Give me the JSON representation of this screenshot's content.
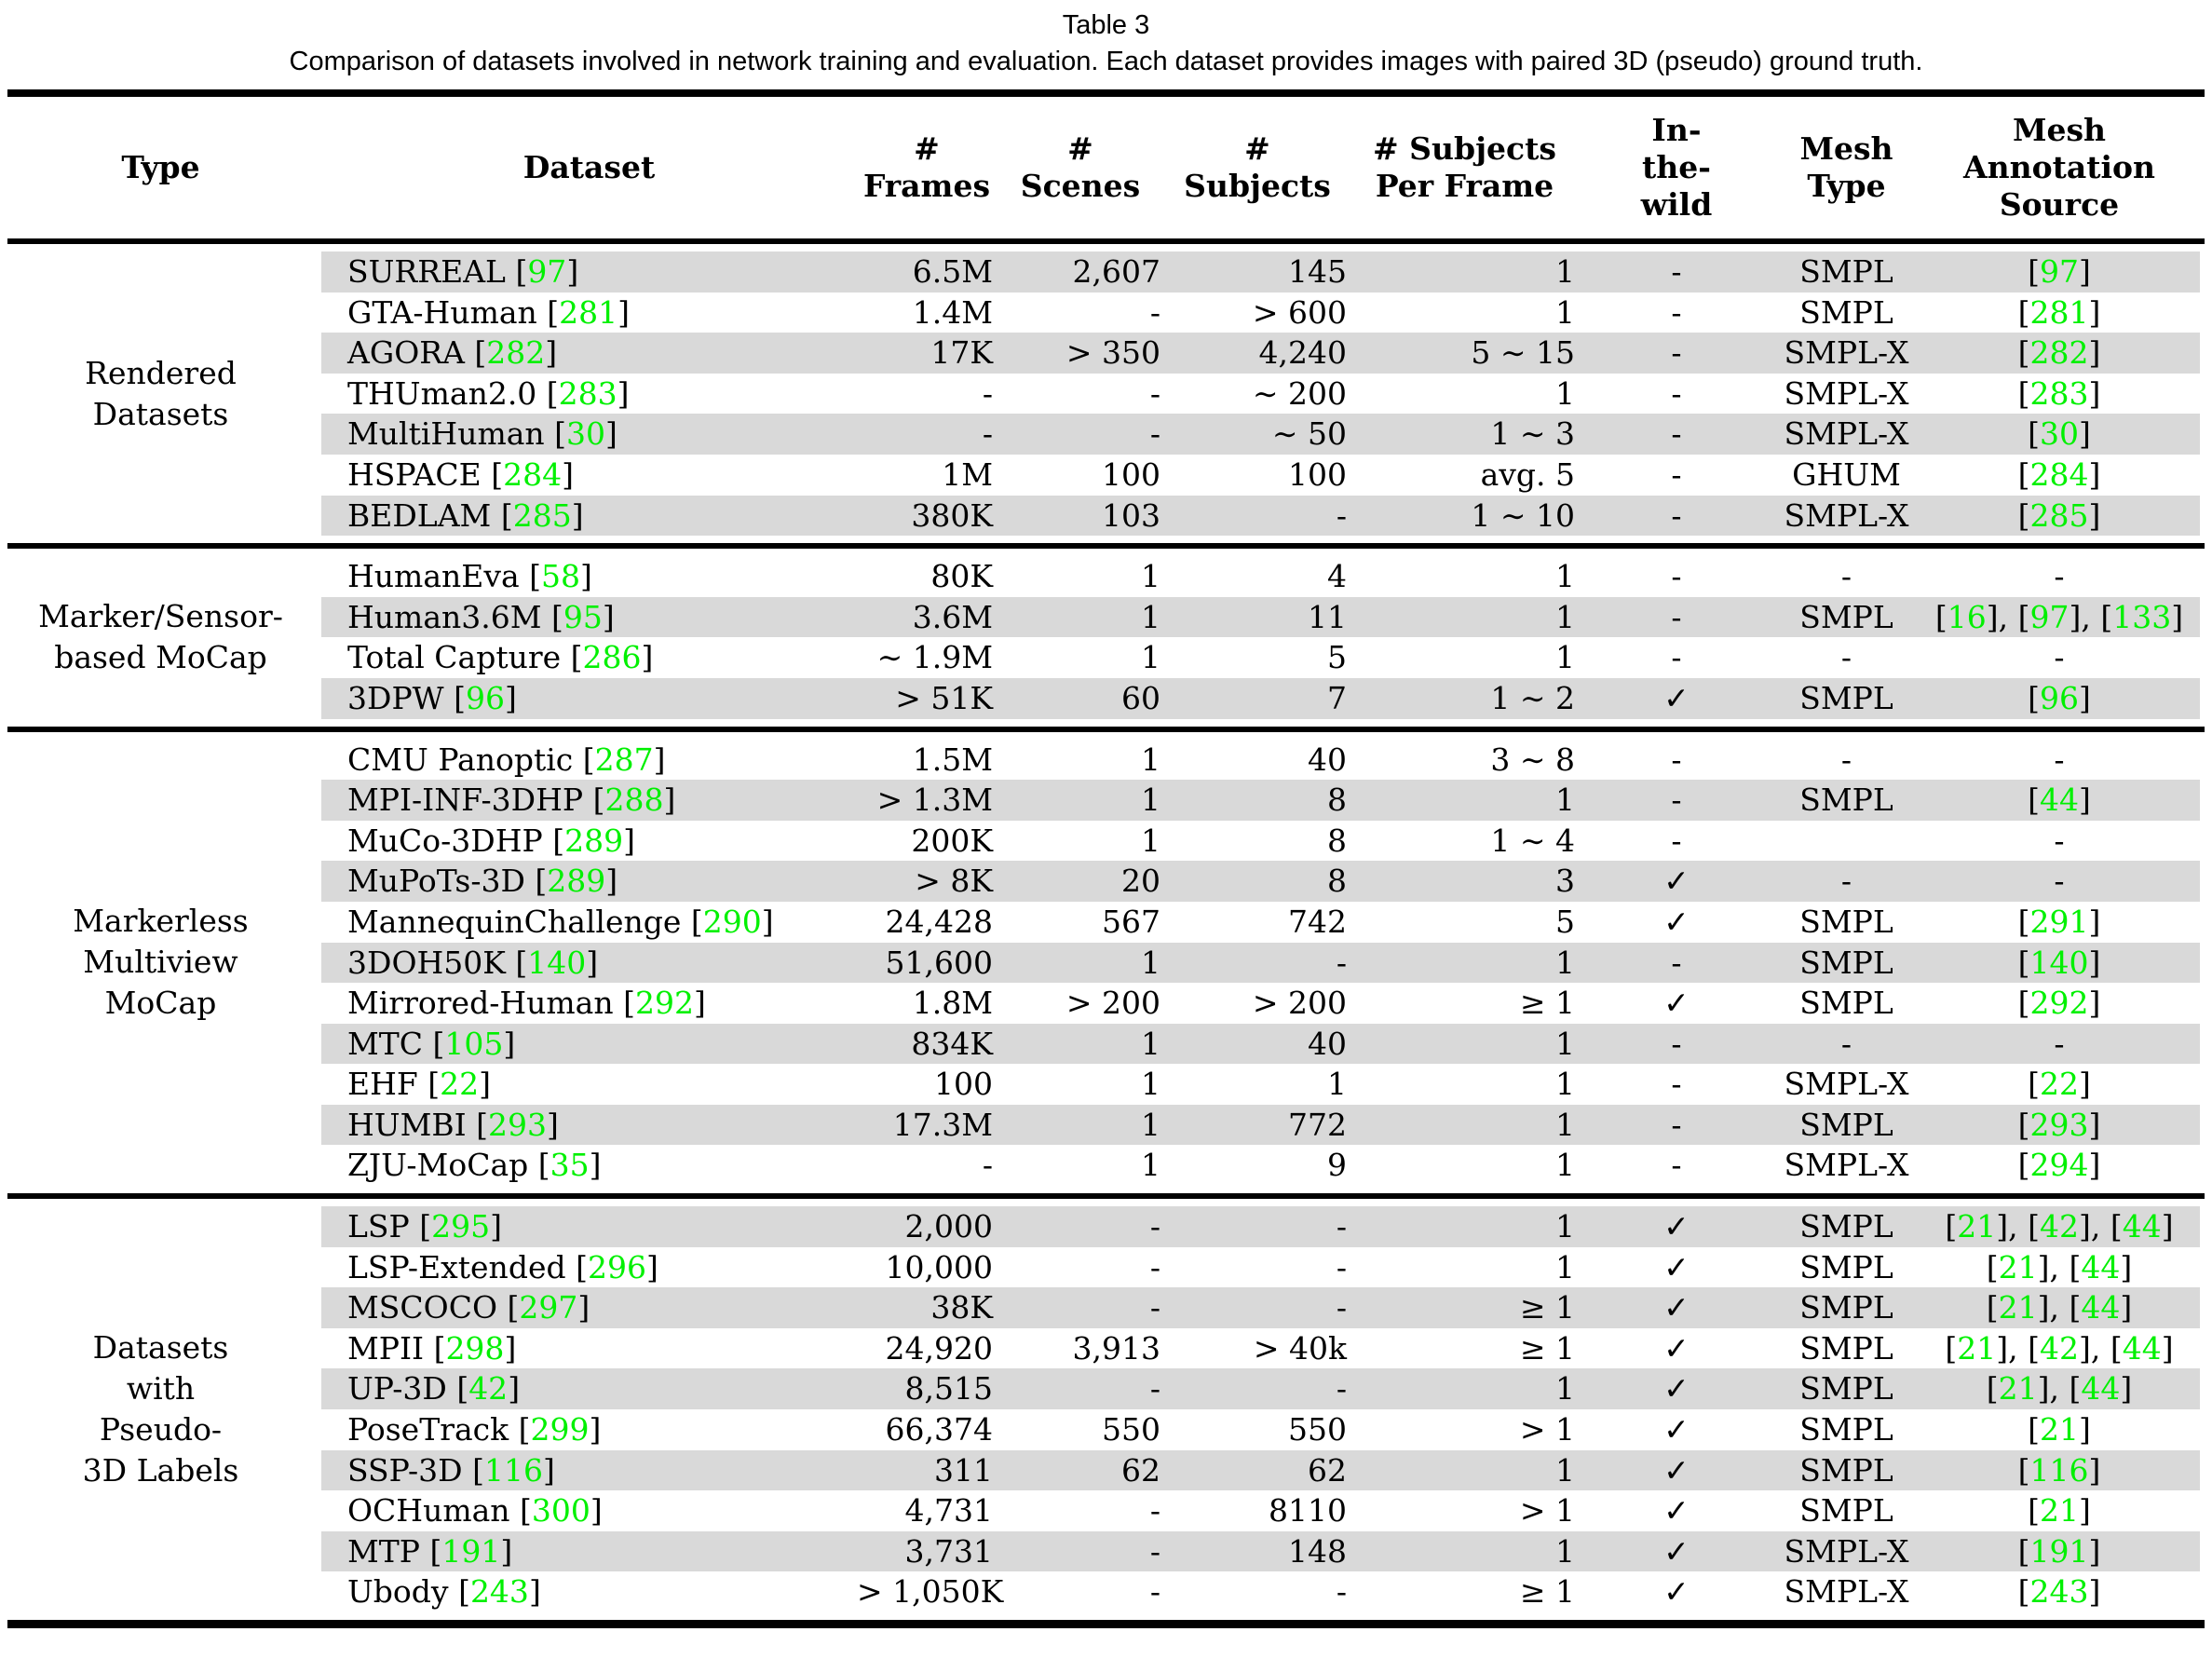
{
  "table": {
    "label": "Table 3",
    "caption": "Comparison of datasets involved in network training and evaluation. Each dataset provides images with paired 3D (pseudo) ground truth.",
    "colors": {
      "citation_green": "#00f000",
      "stripe_gray": "#d9d9d9"
    },
    "header": {
      "type": [
        "Type"
      ],
      "dataset": [
        "Dataset"
      ],
      "frames": [
        "#",
        "Frames"
      ],
      "scenes": [
        "#",
        "Scenes"
      ],
      "subjects": [
        "#",
        "Subjects"
      ],
      "subjects_per_frame": [
        "# Subjects",
        "Per Frame"
      ],
      "in_the_wild": [
        "In-",
        "the-",
        "wild"
      ],
      "mesh_type": [
        "Mesh",
        "Type"
      ],
      "mesh_annotation_source": [
        "Mesh",
        "Annotation",
        "Source"
      ]
    },
    "groups": [
      {
        "type_lines": [
          "Rendered",
          "Datasets"
        ],
        "rows": [
          {
            "dataset": "SURREAL",
            "cite": "97",
            "frames": "6.5M",
            "scenes": "2,607",
            "subjects": "145",
            "spf": "1",
            "itw": "-",
            "mesh": "SMPL",
            "sources": [
              "97"
            ]
          },
          {
            "dataset": "GTA-Human",
            "cite": "281",
            "frames": "1.4M",
            "scenes": "-",
            "subjects": "> 600",
            "spf": "1",
            "itw": "-",
            "mesh": "SMPL",
            "sources": [
              "281"
            ]
          },
          {
            "dataset": "AGORA",
            "cite": "282",
            "frames": "17K",
            "scenes": "> 350",
            "subjects": "4,240",
            "spf": "5 ∼ 15",
            "itw": "-",
            "mesh": "SMPL-X",
            "sources": [
              "282"
            ]
          },
          {
            "dataset": "THUman2.0",
            "cite": "283",
            "frames": "-",
            "scenes": "-",
            "subjects": "∼ 200",
            "spf": "1",
            "itw": "-",
            "mesh": "SMPL-X",
            "sources": [
              "283"
            ]
          },
          {
            "dataset": "MultiHuman",
            "cite": "30",
            "frames": "-",
            "scenes": "-",
            "subjects": "∼ 50",
            "spf": "1 ∼ 3",
            "itw": "-",
            "mesh": "SMPL-X",
            "sources": [
              "30"
            ]
          },
          {
            "dataset": "HSPACE",
            "cite": "284",
            "frames": "1M",
            "scenes": "100",
            "subjects": "100",
            "spf": "avg. 5",
            "itw": "-",
            "mesh": "GHUM",
            "sources": [
              "284"
            ]
          },
          {
            "dataset": "BEDLAM",
            "cite": "285",
            "frames": "380K",
            "scenes": "103",
            "subjects": "-",
            "spf": "1 ∼ 10",
            "itw": "-",
            "mesh": "SMPL-X",
            "sources": [
              "285"
            ]
          }
        ]
      },
      {
        "type_lines": [
          "Marker/Sensor-",
          "based MoCap"
        ],
        "rows": [
          {
            "dataset": "HumanEva",
            "cite": "58",
            "frames": "80K",
            "scenes": "1",
            "subjects": "4",
            "spf": "1",
            "itw": "-",
            "mesh": "-",
            "sources": []
          },
          {
            "dataset": "Human3.6M",
            "cite": "95",
            "frames": "3.6M",
            "scenes": "1",
            "subjects": "11",
            "spf": "1",
            "itw": "-",
            "mesh": "SMPL",
            "sources": [
              "16",
              "97",
              "133"
            ]
          },
          {
            "dataset": "Total Capture",
            "cite": "286",
            "frames": "∼ 1.9M",
            "scenes": "1",
            "subjects": "5",
            "spf": "1",
            "itw": "-",
            "mesh": "-",
            "sources": []
          },
          {
            "dataset": "3DPW",
            "cite": "96",
            "frames": "> 51K",
            "scenes": "60",
            "subjects": "7",
            "spf": "1 ∼ 2",
            "itw": "✓",
            "mesh": "SMPL",
            "sources": [
              "96"
            ]
          }
        ]
      },
      {
        "type_lines": [
          "Markerless",
          "Multiview",
          "MoCap"
        ],
        "rows": [
          {
            "dataset": "CMU Panoptic",
            "cite": "287",
            "frames": "1.5M",
            "scenes": "1",
            "subjects": "40",
            "spf": "3 ∼ 8",
            "itw": "-",
            "mesh": "-",
            "sources": []
          },
          {
            "dataset": "MPI-INF-3DHP",
            "cite": "288",
            "frames": "> 1.3M",
            "scenes": "1",
            "subjects": "8",
            "spf": "1",
            "itw": "-",
            "mesh": "SMPL",
            "sources": [
              "44"
            ]
          },
          {
            "dataset": "MuCo-3DHP",
            "cite": "289",
            "frames": "200K",
            "scenes": "1",
            "subjects": "8",
            "spf": "1 ∼ 4",
            "itw": "-",
            "mesh": "",
            "sources": []
          },
          {
            "dataset": "MuPoTs-3D",
            "cite": "289",
            "frames": "> 8K",
            "scenes": "20",
            "subjects": "8",
            "spf": "3",
            "itw": "✓",
            "mesh": "-",
            "sources": []
          },
          {
            "dataset": "MannequinChallenge",
            "cite": "290",
            "frames": "24,428",
            "scenes": "567",
            "subjects": "742",
            "spf": "5",
            "itw": "✓",
            "mesh": "SMPL",
            "sources": [
              "291"
            ]
          },
          {
            "dataset": "3DOH50K",
            "cite": "140",
            "frames": "51,600",
            "scenes": "1",
            "subjects": "-",
            "spf": "1",
            "itw": "-",
            "mesh": "SMPL",
            "sources": [
              "140"
            ]
          },
          {
            "dataset": "Mirrored-Human",
            "cite": "292",
            "frames": "1.8M",
            "scenes": "> 200",
            "subjects": "> 200",
            "spf": "≥ 1",
            "itw": "✓",
            "mesh": "SMPL",
            "sources": [
              "292"
            ]
          },
          {
            "dataset": "MTC",
            "cite": "105",
            "frames": "834K",
            "scenes": "1",
            "subjects": "40",
            "spf": "1",
            "itw": "-",
            "mesh": "-",
            "sources": []
          },
          {
            "dataset": "EHF",
            "cite": "22",
            "frames": "100",
            "scenes": "1",
            "subjects": "1",
            "spf": "1",
            "itw": "-",
            "mesh": "SMPL-X",
            "sources": [
              "22"
            ]
          },
          {
            "dataset": "HUMBI",
            "cite": "293",
            "frames": "17.3M",
            "scenes": "1",
            "subjects": "772",
            "spf": "1",
            "itw": "-",
            "mesh": "SMPL",
            "sources": [
              "293"
            ]
          },
          {
            "dataset": "ZJU-MoCap",
            "cite": "35",
            "frames": "-",
            "scenes": "1",
            "subjects": "9",
            "spf": "1",
            "itw": "-",
            "mesh": "SMPL-X",
            "sources": [
              "294"
            ]
          }
        ]
      },
      {
        "type_lines": [
          "Datasets",
          "with",
          "Pseudo-",
          "3D Labels"
        ],
        "rows": [
          {
            "dataset": "LSP",
            "cite": "295",
            "frames": "2,000",
            "scenes": "-",
            "subjects": "-",
            "spf": "1",
            "itw": "✓",
            "mesh": "SMPL",
            "sources": [
              "21",
              "42",
              "44"
            ]
          },
          {
            "dataset": "LSP-Extended",
            "cite": "296",
            "frames": "10,000",
            "scenes": "-",
            "subjects": "-",
            "spf": "1",
            "itw": "✓",
            "mesh": "SMPL",
            "sources": [
              "21",
              "44"
            ]
          },
          {
            "dataset": "MSCOCO",
            "cite": "297",
            "frames": "38K",
            "scenes": "-",
            "subjects": "-",
            "spf": "≥ 1",
            "itw": "✓",
            "mesh": "SMPL",
            "sources": [
              "21",
              "44"
            ]
          },
          {
            "dataset": "MPII",
            "cite": "298",
            "frames": "24,920",
            "scenes": "3,913",
            "subjects": "> 40k",
            "spf": "≥ 1",
            "itw": "✓",
            "mesh": "SMPL",
            "sources": [
              "21",
              "42",
              "44"
            ]
          },
          {
            "dataset": "UP-3D",
            "cite": "42",
            "frames": "8,515",
            "scenes": "-",
            "subjects": "-",
            "spf": "1",
            "itw": "✓",
            "mesh": "SMPL",
            "sources": [
              "21",
              "44"
            ]
          },
          {
            "dataset": "PoseTrack",
            "cite": "299",
            "frames": "66,374",
            "scenes": "550",
            "subjects": "550",
            "spf": "> 1",
            "itw": "✓",
            "mesh": "SMPL",
            "sources": [
              "21"
            ]
          },
          {
            "dataset": "SSP-3D",
            "cite": "116",
            "frames": "311",
            "scenes": "62",
            "subjects": "62",
            "spf": "1",
            "itw": "✓",
            "mesh": "SMPL",
            "sources": [
              "116"
            ]
          },
          {
            "dataset": "OCHuman",
            "cite": "300",
            "frames": "4,731",
            "scenes": "-",
            "subjects": "8110",
            "spf": "> 1",
            "itw": "✓",
            "mesh": "SMPL",
            "sources": [
              "21"
            ]
          },
          {
            "dataset": "MTP",
            "cite": "191",
            "frames": "3,731",
            "scenes": "-",
            "subjects": "148",
            "spf": "1",
            "itw": "✓",
            "mesh": "SMPL-X",
            "sources": [
              "191"
            ]
          },
          {
            "dataset": "Ubody",
            "cite": "243",
            "frames": "> 1,050K",
            "scenes": "-",
            "subjects": "-",
            "spf": "≥ 1",
            "itw": "✓",
            "mesh": "SMPL-X",
            "sources": [
              "243"
            ]
          }
        ]
      }
    ]
  }
}
